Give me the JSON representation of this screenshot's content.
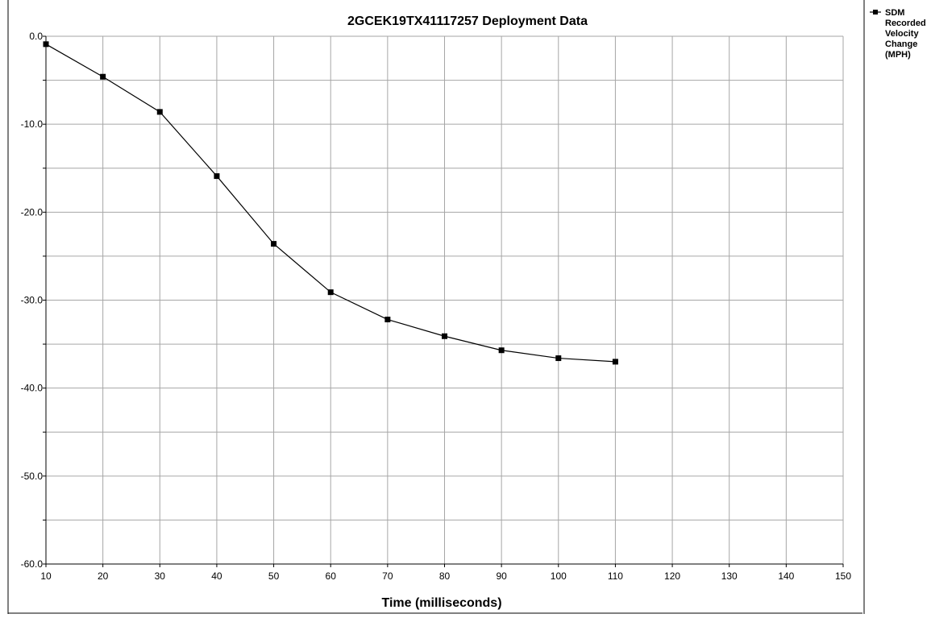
{
  "chart_data": {
    "type": "line",
    "title": "2GCEK19TX41117257  Deployment Data",
    "xlabel": "Time (milliseconds)",
    "ylabel": "",
    "xlim": [
      10,
      150
    ],
    "ylim": [
      -60,
      0
    ],
    "x_ticks": [
      10,
      20,
      30,
      40,
      50,
      60,
      70,
      80,
      90,
      100,
      110,
      120,
      130,
      140,
      150
    ],
    "x_tick_labels": [
      "10",
      "20",
      "30",
      "40",
      "50",
      "60",
      "70",
      "80",
      "90",
      "100",
      "110",
      "120",
      "130",
      "140",
      "150"
    ],
    "y_ticks": [
      0,
      -10,
      -20,
      -30,
      -40,
      -50,
      -60
    ],
    "y_tick_labels": [
      "0.0",
      "-10.0",
      "-20.0",
      "-30.0",
      "-40.0",
      "-50.0",
      "-60.0"
    ],
    "y_minor_grid": [
      -5,
      -15,
      -25,
      -35,
      -45,
      -55
    ],
    "grid": true,
    "legend_position": "right",
    "legend_lines": [
      "SDM",
      "Recorded",
      "Velocity",
      "Change",
      "(MPH)"
    ],
    "series": [
      {
        "name": "SDM Recorded Velocity Change (MPH)",
        "marker": "square",
        "color": "#000000",
        "x": [
          10,
          20,
          30,
          40,
          50,
          60,
          70,
          80,
          90,
          100,
          110
        ],
        "values": [
          -0.9,
          -4.6,
          -8.6,
          -15.9,
          -23.6,
          -29.1,
          -32.2,
          -34.1,
          -35.7,
          -36.6,
          -37.0
        ]
      }
    ]
  }
}
